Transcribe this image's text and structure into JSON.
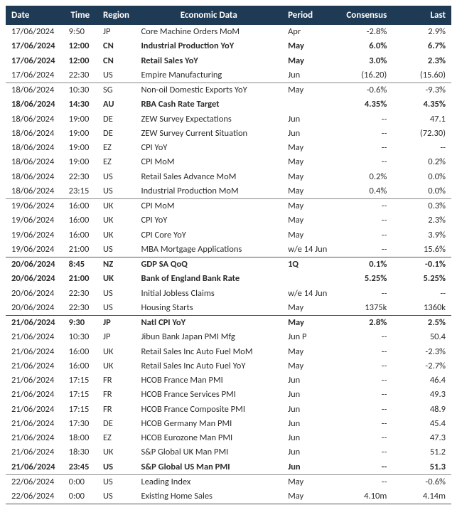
{
  "headers": {
    "date": "Date",
    "time": "Time",
    "region": "Region",
    "event": "Economic Data",
    "period": "Period",
    "consensus": "Consensus",
    "last": "Last"
  },
  "colors": {
    "header_bg": "#1f3a54",
    "header_text": "#ffffff",
    "row_text": "#2c2c2c",
    "border": "#888888"
  },
  "rows": [
    {
      "date": "17/06/2024",
      "time": "9:50",
      "region": "JP",
      "event": "Core Machine Orders MoM",
      "period": "Apr",
      "consensus": "-2.8%",
      "last": "2.9%",
      "bold": false,
      "sep": false
    },
    {
      "date": "17/06/2024",
      "time": "12:00",
      "region": "CN",
      "event": "Industrial Production YoY",
      "period": "May",
      "consensus": "6.0%",
      "last": "6.7%",
      "bold": true,
      "sep": false
    },
    {
      "date": "17/06/2024",
      "time": "12:00",
      "region": "CN",
      "event": "Retail Sales YoY",
      "period": "May",
      "consensus": "3.0%",
      "last": "2.3%",
      "bold": true,
      "sep": false
    },
    {
      "date": "17/06/2024",
      "time": "22:30",
      "region": "US",
      "event": "Empire Manufacturing",
      "period": "Jun",
      "consensus": "(16.20)",
      "last": "(15.60)",
      "bold": false,
      "sep": false
    },
    {
      "date": "18/06/2024",
      "time": "10:30",
      "region": "SG",
      "event": "Non-oil Domestic Exports YoY",
      "period": "May",
      "consensus": "-0.6%",
      "last": "-9.3%",
      "bold": false,
      "sep": true
    },
    {
      "date": "18/06/2024",
      "time": "14:30",
      "region": "AU",
      "event": "RBA Cash Rate Target",
      "period": "",
      "consensus": "4.35%",
      "last": "4.35%",
      "bold": true,
      "sep": false
    },
    {
      "date": "18/06/2024",
      "time": "19:00",
      "region": "DE",
      "event": "ZEW Survey Expectations",
      "period": "Jun",
      "consensus": "--",
      "last": "47.1",
      "bold": false,
      "sep": false
    },
    {
      "date": "18/06/2024",
      "time": "19:00",
      "region": "DE",
      "event": "ZEW Survey Current Situation",
      "period": "Jun",
      "consensus": "--",
      "last": "(72.30)",
      "bold": false,
      "sep": false
    },
    {
      "date": "18/06/2024",
      "time": "19:00",
      "region": "EZ",
      "event": "CPI YoY",
      "period": "May",
      "consensus": "--",
      "last": "--",
      "bold": false,
      "sep": false
    },
    {
      "date": "18/06/2024",
      "time": "19:00",
      "region": "EZ",
      "event": "CPI MoM",
      "period": "May",
      "consensus": "--",
      "last": "0.2%",
      "bold": false,
      "sep": false
    },
    {
      "date": "18/06/2024",
      "time": "22:30",
      "region": "US",
      "event": "Retail Sales Advance MoM",
      "period": "May",
      "consensus": "0.2%",
      "last": "0.0%",
      "bold": false,
      "sep": false
    },
    {
      "date": "18/06/2024",
      "time": "23:15",
      "region": "US",
      "event": "Industrial Production MoM",
      "period": "May",
      "consensus": "0.4%",
      "last": "0.0%",
      "bold": false,
      "sep": false
    },
    {
      "date": "19/06/2024",
      "time": "16:00",
      "region": "UK",
      "event": "CPI MoM",
      "period": "May",
      "consensus": "--",
      "last": "0.3%",
      "bold": false,
      "sep": true
    },
    {
      "date": "19/06/2024",
      "time": "16:00",
      "region": "UK",
      "event": "CPI YoY",
      "period": "May",
      "consensus": "--",
      "last": "2.3%",
      "bold": false,
      "sep": false
    },
    {
      "date": "19/06/2024",
      "time": "16:00",
      "region": "UK",
      "event": "CPI Core YoY",
      "period": "May",
      "consensus": "--",
      "last": "3.9%",
      "bold": false,
      "sep": false
    },
    {
      "date": "19/06/2024",
      "time": "21:00",
      "region": "US",
      "event": "MBA Mortgage Applications",
      "period": "w/e 14 Jun",
      "consensus": "--",
      "last": "15.6%",
      "bold": false,
      "sep": false
    },
    {
      "date": "20/06/2024",
      "time": "8:45",
      "region": "NZ",
      "event": "GDP SA QoQ",
      "period": "1Q",
      "consensus": "0.1%",
      "last": "-0.1%",
      "bold": true,
      "sep": true,
      "heavy": true
    },
    {
      "date": "20/06/2024",
      "time": "21:00",
      "region": "UK",
      "event": "Bank of England Bank Rate",
      "period": "",
      "consensus": "5.25%",
      "last": "5.25%",
      "bold": true,
      "sep": false
    },
    {
      "date": "20/06/2024",
      "time": "22:30",
      "region": "US",
      "event": "Initial Jobless Claims",
      "period": "w/e 14 Jun",
      "consensus": "--",
      "last": "--",
      "bold": false,
      "sep": false
    },
    {
      "date": "20/06/2024",
      "time": "22:30",
      "region": "US",
      "event": "Housing Starts",
      "period": "May",
      "consensus": "1375k",
      "last": "1360k",
      "bold": false,
      "sep": false
    },
    {
      "date": "21/06/2024",
      "time": "9:30",
      "region": "JP",
      "event": "Natl CPI YoY",
      "period": "May",
      "consensus": "2.8%",
      "last": "2.5%",
      "bold": true,
      "sep": true,
      "heavy": true
    },
    {
      "date": "21/06/2024",
      "time": "10:30",
      "region": "JP",
      "event": "Jibun Bank Japan PMI Mfg",
      "period": "Jun P",
      "consensus": "--",
      "last": "50.4",
      "bold": false,
      "sep": false
    },
    {
      "date": "21/06/2024",
      "time": "16:00",
      "region": "UK",
      "event": "Retail Sales Inc Auto Fuel MoM",
      "period": "May",
      "consensus": "--",
      "last": "-2.3%",
      "bold": false,
      "sep": false
    },
    {
      "date": "21/06/2024",
      "time": "16:00",
      "region": "UK",
      "event": "Retail Sales Inc Auto Fuel YoY",
      "period": "May",
      "consensus": "--",
      "last": "-2.7%",
      "bold": false,
      "sep": false
    },
    {
      "date": "21/06/2024",
      "time": "17:15",
      "region": "FR",
      "event": "HCOB France Man PMI",
      "period": "Jun",
      "consensus": "--",
      "last": "46.4",
      "bold": false,
      "sep": false
    },
    {
      "date": "21/06/2024",
      "time": "17:15",
      "region": "FR",
      "event": "HCOB France Services PMI",
      "period": "Jun",
      "consensus": "--",
      "last": "49.3",
      "bold": false,
      "sep": false
    },
    {
      "date": "21/06/2024",
      "time": "17:15",
      "region": "FR",
      "event": "HCOB France Composite PMI",
      "period": "Jun",
      "consensus": "--",
      "last": "48.9",
      "bold": false,
      "sep": false
    },
    {
      "date": "21/06/2024",
      "time": "17:30",
      "region": "DE",
      "event": "HCOB Germany Man PMI",
      "period": "Jun",
      "consensus": "--",
      "last": "45.4",
      "bold": false,
      "sep": false
    },
    {
      "date": "21/06/2024",
      "time": "18:00",
      "region": "EZ",
      "event": "HCOB Eurozone Man PMI",
      "period": "Jun",
      "consensus": "--",
      "last": "47.3",
      "bold": false,
      "sep": false
    },
    {
      "date": "21/06/2024",
      "time": "18:30",
      "region": "UK",
      "event": "S&P Global UK Man PMI",
      "period": "Jun",
      "consensus": "--",
      "last": "51.2",
      "bold": false,
      "sep": false
    },
    {
      "date": "21/06/2024",
      "time": "23:45",
      "region": "US",
      "event": "S&P Global US Man PMI",
      "period": "Jun",
      "consensus": "--",
      "last": "51.3",
      "bold": true,
      "sep": false
    },
    {
      "date": "22/06/2024",
      "time": "0:00",
      "region": "US",
      "event": "Leading Index",
      "period": "May",
      "consensus": "--",
      "last": "-0.6%",
      "bold": false,
      "sep": true
    },
    {
      "date": "22/06/2024",
      "time": "0:00",
      "region": "US",
      "event": "Existing Home Sales",
      "period": "May",
      "consensus": "4.10m",
      "last": "4.14m",
      "bold": false,
      "sep": false,
      "bottom": true
    }
  ]
}
